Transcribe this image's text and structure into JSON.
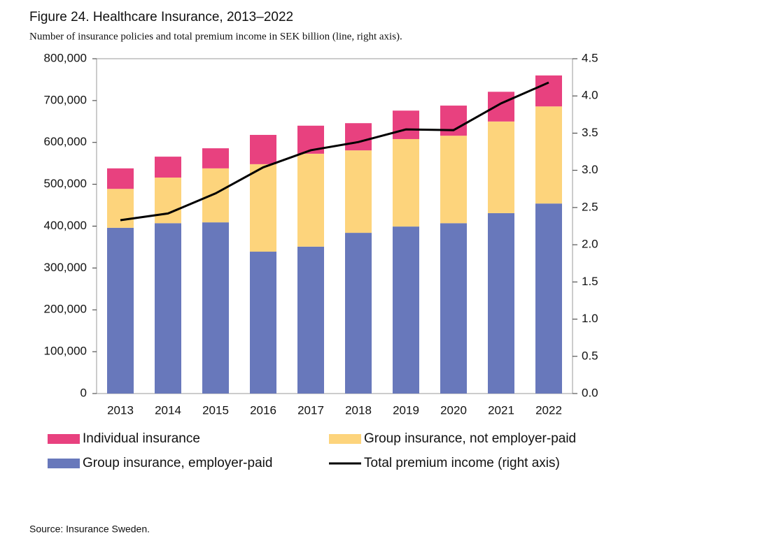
{
  "chart_data": {
    "type": "bar",
    "title": "Figure 24. Healthcare Insurance, 2013–2022",
    "subtitle": "Number of insurance policies and total premium income in SEK billion (line, right axis).",
    "source": "Source: Insurance Sweden.",
    "categories": [
      "2013",
      "2014",
      "2015",
      "2016",
      "2017",
      "2018",
      "2019",
      "2020",
      "2021",
      "2022"
    ],
    "stacked": true,
    "series": [
      {
        "name": "Group insurance, employer-paid",
        "color": "#6878bb",
        "values": [
          396000,
          407000,
          409000,
          339000,
          351000,
          384000,
          399000,
          407000,
          431000,
          454000
        ]
      },
      {
        "name": "Group insurance, not employer-paid",
        "color": "#fdd47c",
        "values": [
          93000,
          109000,
          129000,
          209000,
          222000,
          197000,
          209000,
          209000,
          219000,
          232000
        ]
      },
      {
        "name": "Individual insurance",
        "color": "#e8417f",
        "values": [
          49000,
          50000,
          48000,
          70000,
          67000,
          65000,
          68000,
          72000,
          71000,
          74000
        ]
      },
      {
        "name": "Total premium income (right axis)",
        "color": "#000000",
        "type": "line",
        "axis": "y2",
        "values": [
          2.33,
          2.42,
          2.69,
          3.04,
          3.27,
          3.38,
          3.55,
          3.54,
          3.9,
          4.18
        ]
      }
    ],
    "ylim": [
      0,
      800000
    ],
    "yticks": [
      0,
      {
        "value": 100000,
        "label": "100,000"
      },
      {
        "value": 200000,
        "label": "200,000"
      },
      {
        "value": 300000,
        "label": "300,000"
      },
      {
        "value": 400000,
        "label": "400,000"
      },
      {
        "value": 500000,
        "label": "500,000"
      },
      {
        "value": 600000,
        "label": "600,000"
      },
      {
        "value": 700000,
        "label": "700,000"
      },
      {
        "value": 800000,
        "label": "800,000"
      }
    ],
    "y2lim": [
      0,
      4.5
    ],
    "y2ticks": [
      {
        "value": 0,
        "label": "0.0"
      },
      0.5,
      {
        "value": 1,
        "label": "1.0"
      },
      1.5,
      {
        "value": 2,
        "label": "2.0"
      },
      2.5,
      {
        "value": 3,
        "label": "3.0"
      },
      3.5,
      {
        "value": 4,
        "label": "4.0"
      },
      4.5
    ]
  }
}
